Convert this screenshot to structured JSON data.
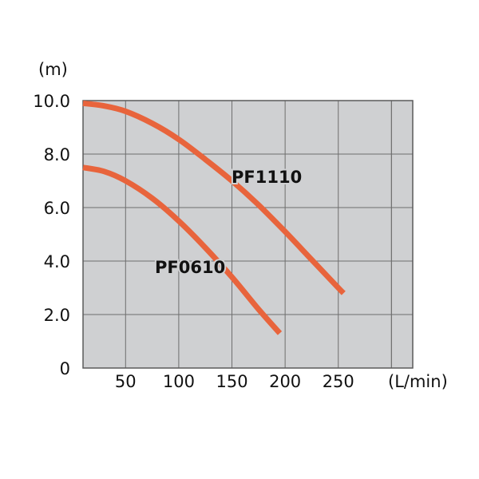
{
  "chart_data": {
    "type": "line",
    "title": "",
    "ylabel": "(m)",
    "xlabel": "(L/min)",
    "xlim": [
      10,
      320
    ],
    "ylim": [
      0,
      10
    ],
    "x_ticks": [
      50,
      100,
      150,
      200,
      250
    ],
    "x_tick_labels": [
      "50",
      "100",
      "150",
      "200",
      "250"
    ],
    "y_ticks": [
      0,
      2,
      4,
      6,
      8,
      10
    ],
    "y_tick_labels": [
      "0",
      "2.0",
      "4.0",
      "6.0",
      "8.0",
      "10.0"
    ],
    "grid": true,
    "series": [
      {
        "name": "PF1110",
        "color": "#e8643c",
        "x": [
          10,
          30,
          50,
          75,
          100,
          125,
          150,
          175,
          200,
          225,
          250,
          255
        ],
        "y": [
          9.9,
          9.8,
          9.6,
          9.15,
          8.55,
          7.8,
          7.0,
          6.1,
          5.1,
          4.05,
          3.0,
          2.8
        ]
      },
      {
        "name": "PF0610",
        "color": "#e8643c",
        "x": [
          10,
          30,
          50,
          75,
          100,
          125,
          150,
          175,
          195
        ],
        "y": [
          7.5,
          7.35,
          7.0,
          6.35,
          5.5,
          4.5,
          3.4,
          2.2,
          1.3
        ]
      }
    ]
  },
  "colors": {
    "plot_background": "#cfd0d2",
    "grid_lines": "#6e6e6e",
    "axis_frame": "#5a5a5a"
  }
}
